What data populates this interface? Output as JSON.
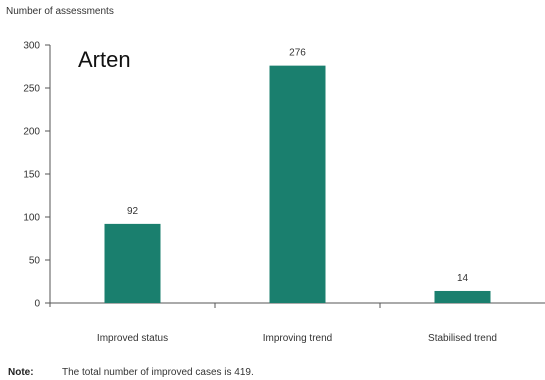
{
  "chart_data": {
    "type": "bar",
    "ylabel": "Number of assessments",
    "categories": [
      "Improved status",
      "Improving trend",
      "Stabilised trend"
    ],
    "values": [
      92,
      276,
      14
    ],
    "ylim": [
      0,
      300
    ],
    "yticks": [
      0,
      50,
      100,
      150,
      200,
      250,
      300
    ],
    "grid": false,
    "bar_color": "#1a7f6e",
    "data_labels": [
      "92",
      "276",
      "14"
    ]
  },
  "inset_title": "Arten",
  "note": {
    "label": "Note:",
    "text": "The total number of improved cases is 419."
  }
}
